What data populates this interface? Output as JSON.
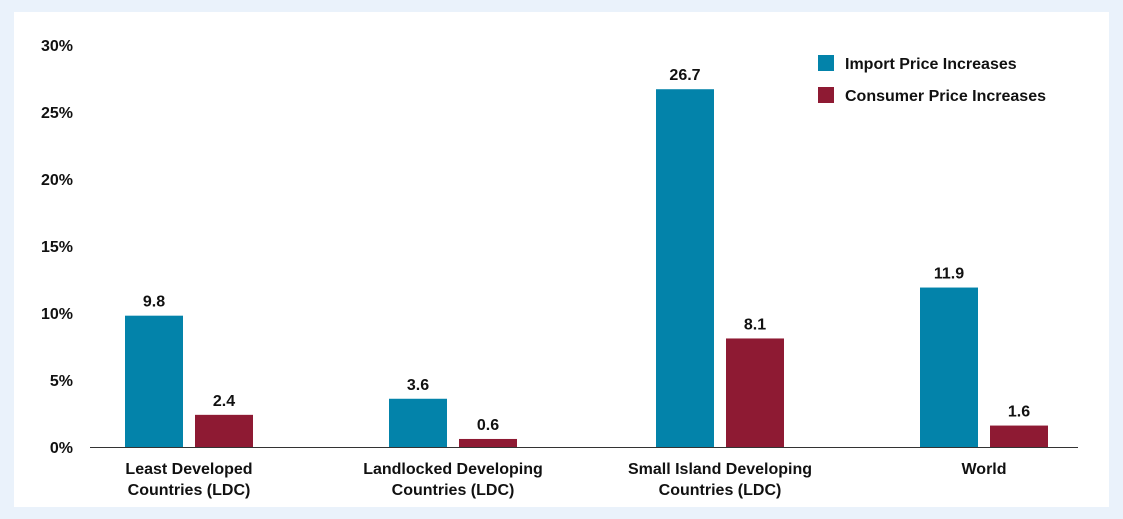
{
  "chart_data": {
    "type": "bar",
    "categories": [
      [
        "Least Developed",
        "Countries (LDC)"
      ],
      [
        "Landlocked Developing",
        "Countries (LDC)"
      ],
      [
        "Small Island Developing",
        "Countries (LDC)"
      ],
      [
        "World"
      ]
    ],
    "series": [
      {
        "name": "Import Price Increases",
        "color": "#0383aa",
        "values": [
          9.8,
          3.6,
          26.7,
          11.9
        ]
      },
      {
        "name": "Consumer Price Increases",
        "color": "#8e1a33",
        "values": [
          2.4,
          0.6,
          8.1,
          1.6
        ]
      }
    ],
    "y_ticks": [
      "0%",
      "5%",
      "10%",
      "15%",
      "20%",
      "25%",
      "30%"
    ],
    "ylim": [
      0,
      30
    ],
    "title": "",
    "xlabel": "",
    "ylabel": "",
    "grid": false,
    "legend_position": "top-right",
    "data_labels": true
  }
}
